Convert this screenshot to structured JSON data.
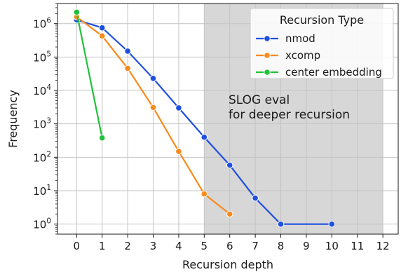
{
  "chart_data": {
    "type": "line",
    "xlabel": "Recursion depth",
    "ylabel": "Frequency",
    "xlim": [
      -0.75,
      12.6
    ],
    "ylim": [
      0.5,
      4000000
    ],
    "yscale": "log",
    "grid": true,
    "x_ticks": [
      0,
      1,
      2,
      3,
      4,
      5,
      6,
      7,
      8,
      9,
      10,
      11,
      12
    ],
    "y_ticks": [
      1,
      10,
      100,
      1000,
      10000,
      100000,
      1000000
    ],
    "y_tick_labels": [
      {
        "base": "10",
        "exp": "0"
      },
      {
        "base": "10",
        "exp": "1"
      },
      {
        "base": "10",
        "exp": "2"
      },
      {
        "base": "10",
        "exp": "3"
      },
      {
        "base": "10",
        "exp": "4"
      },
      {
        "base": "10",
        "exp": "5"
      },
      {
        "base": "10",
        "exp": "6"
      }
    ],
    "shaded_region": {
      "x_from": 5,
      "x_to": 12,
      "color": "#d7d7d7"
    },
    "annotation": [
      "SLOG eval",
      "for deeper recursion"
    ],
    "legend": {
      "title": "Recursion Type",
      "position": "top-right"
    },
    "series": [
      {
        "name": "nmod",
        "color": "#1f4fe0",
        "x": [
          0,
          1,
          2,
          3,
          4,
          5,
          6,
          7,
          8,
          10
        ],
        "y": [
          1300000,
          750000,
          150000,
          23000,
          3000,
          400,
          58,
          6,
          1,
          1
        ]
      },
      {
        "name": "xcomp",
        "color": "#f98a1b",
        "x": [
          0,
          1,
          2,
          3,
          4,
          5,
          6
        ],
        "y": [
          1600000,
          430000,
          46000,
          3100,
          150,
          8,
          2
        ]
      },
      {
        "name": "center embedding",
        "color": "#1fc23a",
        "x": [
          0,
          1
        ],
        "y": [
          2200000,
          380
        ]
      }
    ]
  }
}
